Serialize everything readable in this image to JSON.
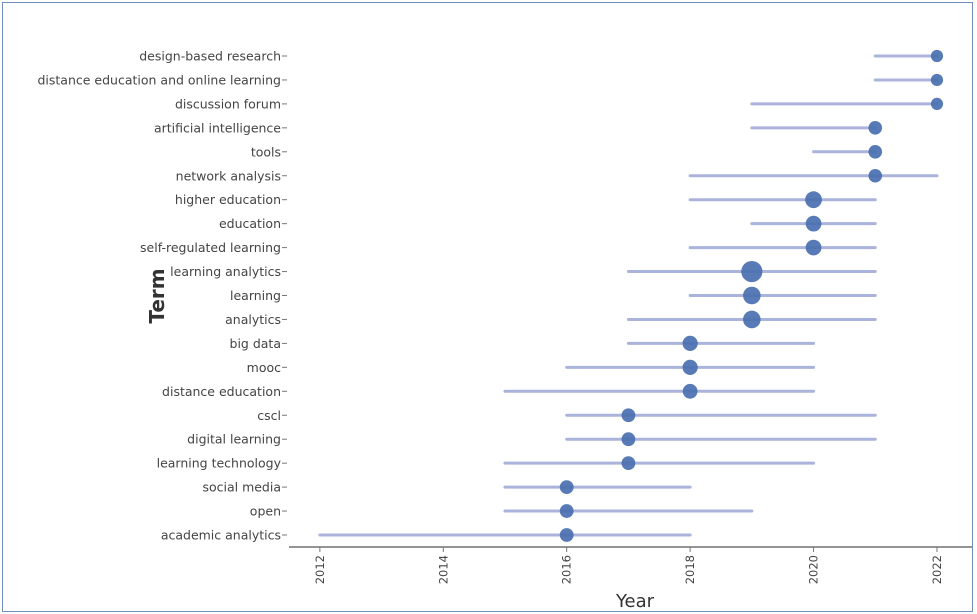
{
  "chart_data": {
    "type": "scatter",
    "xlabel": "Year",
    "ylabel": "Term",
    "xlim": [
      2011.5,
      2022.6
    ],
    "x_ticks": [
      "2012",
      "2014",
      "2016",
      "2018",
      "2020",
      "2022"
    ],
    "grid": false,
    "colors": {
      "point": "#4a6fb0",
      "range": "#a9b3db",
      "axis": "#555555"
    },
    "terms": [
      {
        "term": "design-based research",
        "start": 2021,
        "end": 2022,
        "peak": 2022,
        "freq": 1
      },
      {
        "term": "distance education and online learning",
        "start": 2021,
        "end": 2022,
        "peak": 2022,
        "freq": 1
      },
      {
        "term": "discussion forum",
        "start": 2019,
        "end": 2022,
        "peak": 2022,
        "freq": 1
      },
      {
        "term": "artificial intelligence",
        "start": 2019,
        "end": 2021,
        "peak": 2021,
        "freq": 1.5
      },
      {
        "term": "tools",
        "start": 2020,
        "end": 2021,
        "peak": 2021,
        "freq": 1.5
      },
      {
        "term": "network analysis",
        "start": 2018,
        "end": 2022,
        "peak": 2021,
        "freq": 1.5
      },
      {
        "term": "higher education",
        "start": 2018,
        "end": 2021,
        "peak": 2020,
        "freq": 3
      },
      {
        "term": "education",
        "start": 2019,
        "end": 2021,
        "peak": 2020,
        "freq": 2.5
      },
      {
        "term": "self-regulated learning",
        "start": 2018,
        "end": 2021,
        "peak": 2020,
        "freq": 2.5
      },
      {
        "term": "learning analytics",
        "start": 2017,
        "end": 2021,
        "peak": 2019,
        "freq": 6
      },
      {
        "term": "learning",
        "start": 2018,
        "end": 2021,
        "peak": 2019,
        "freq": 3.5
      },
      {
        "term": "analytics",
        "start": 2017,
        "end": 2021,
        "peak": 2019,
        "freq": 3.5
      },
      {
        "term": "big data",
        "start": 2017,
        "end": 2020,
        "peak": 2018,
        "freq": 2.2
      },
      {
        "term": "mooc",
        "start": 2016,
        "end": 2020,
        "peak": 2018,
        "freq": 2.2
      },
      {
        "term": "distance education",
        "start": 2015,
        "end": 2020,
        "peak": 2018,
        "freq": 2
      },
      {
        "term": "cscl",
        "start": 2016,
        "end": 2021,
        "peak": 2017,
        "freq": 1.6
      },
      {
        "term": "digital learning",
        "start": 2016,
        "end": 2021,
        "peak": 2017,
        "freq": 1.6
      },
      {
        "term": "learning technology",
        "start": 2015,
        "end": 2020,
        "peak": 2017,
        "freq": 1.6
      },
      {
        "term": "social media",
        "start": 2015,
        "end": 2018,
        "peak": 2016,
        "freq": 1.6
      },
      {
        "term": "open",
        "start": 2015,
        "end": 2019,
        "peak": 2016,
        "freq": 1.6
      },
      {
        "term": "academic analytics",
        "start": 2012,
        "end": 2018,
        "peak": 2016,
        "freq": 1.6
      }
    ]
  }
}
